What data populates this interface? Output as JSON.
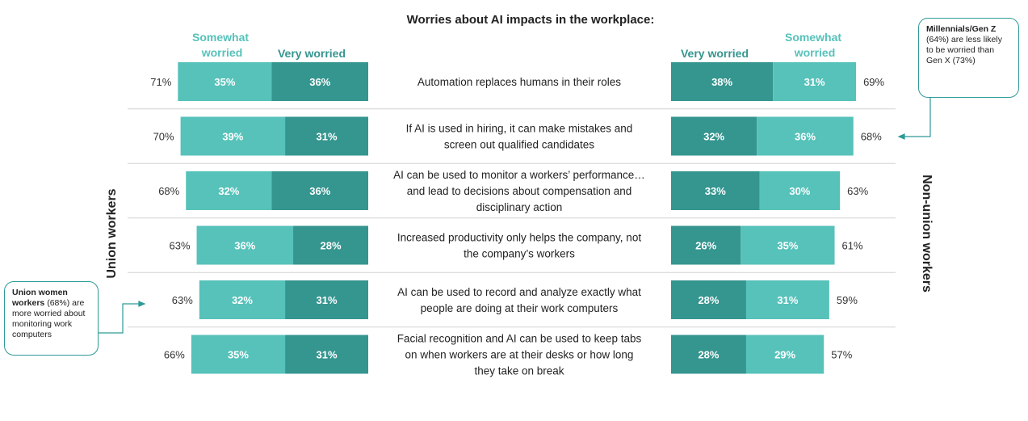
{
  "chart_data": {
    "type": "bar",
    "title": "Worries about AI impacts in the workplace:",
    "legend": {
      "somewhat": "Somewhat worried",
      "very": "Very worried"
    },
    "colors": {
      "somewhat": "#56c2ba",
      "very": "#35958f"
    },
    "groups": {
      "left": "Union workers",
      "right": "Non-union workers"
    },
    "categories": [
      "Automation replaces humans in their roles",
      "If AI is used in hiring, it can make mistakes and screen out qualified candidates",
      "AI can be used to monitor a workers' performance… and lead to decisions about compensation and disciplinary action",
      "Increased productivity only helps the company, not the company's workers",
      "AI can be used to record and analyze exactly what people are doing at their work computers",
      "Facial recognition and AI can be used to keep tabs on when workers are at their desks or how long they take on break"
    ],
    "category_lines": [
      [
        "Automation replaces humans in their roles"
      ],
      [
        "If AI is used in hiring, it can make mistakes and",
        "screen out qualified candidates"
      ],
      [
        "AI can be used to monitor a workers’ performance…",
        "and lead to decisions about compensation and",
        "disciplinary action"
      ],
      [
        "Increased productivity only helps the company, not",
        "the company’s workers"
      ],
      [
        "AI can be used to record and analyze exactly what",
        "people are doing at their work computers"
      ],
      [
        "Facial recognition and AI can be used to keep tabs",
        "on when workers are at their desks or how long",
        "they take on break"
      ]
    ],
    "union": {
      "somewhat": [
        35,
        39,
        32,
        36,
        32,
        35
      ],
      "very": [
        36,
        31,
        36,
        28,
        31,
        31
      ],
      "total": [
        71,
        70,
        68,
        63,
        63,
        66
      ]
    },
    "non_union": {
      "very": [
        38,
        32,
        33,
        26,
        28,
        28
      ],
      "somewhat": [
        31,
        36,
        30,
        35,
        31,
        29
      ],
      "total": [
        69,
        68,
        63,
        61,
        59,
        57
      ]
    }
  },
  "callouts": {
    "gen": {
      "bold": "Millennials/Gen Z",
      "text": "(64%) are less likely to be worried than Gen X (73%)"
    },
    "union_women": {
      "bold": "Union women workers",
      "text": "(68%) are more worried  about monitoring work computers"
    }
  }
}
